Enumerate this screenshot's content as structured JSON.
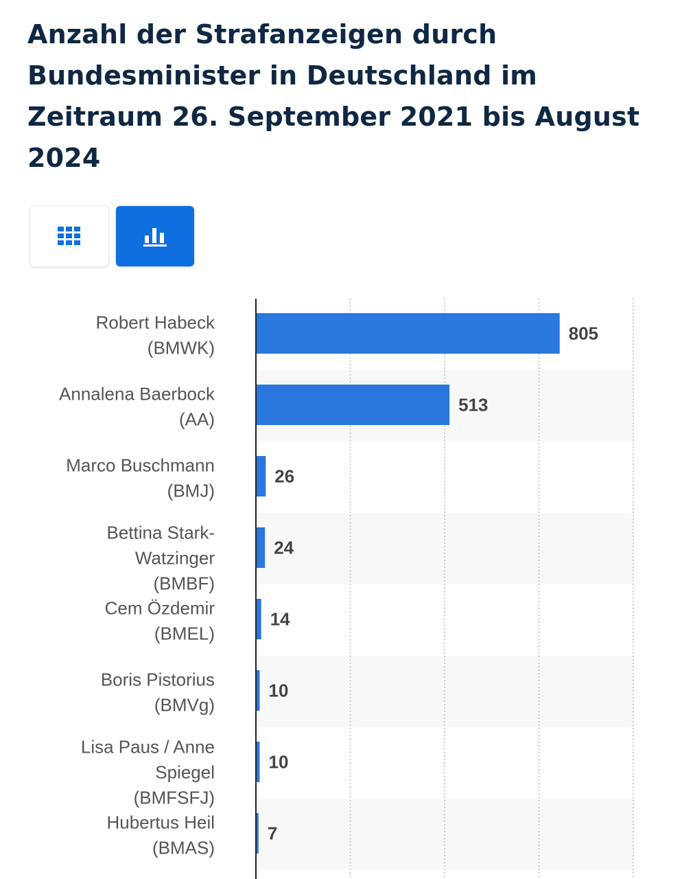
{
  "title": "Anzahl der Strafanzeigen durch Bundesminister in Deutschland im Zeitraum 26. September 2021 bis August 2024",
  "view_toggle": {
    "table_icon": "table-grid-icon",
    "chart_icon": "bar-chart-icon",
    "active": "chart"
  },
  "colors": {
    "title": "#0f2843",
    "bar": "#2a77de",
    "active_toggle": "#0f6fe0"
  },
  "chart_data": {
    "type": "bar",
    "orientation": "horizontal",
    "categories": [
      [
        "Robert Habeck",
        "(BMWK)"
      ],
      [
        "Annalena Baerbock",
        "(AA)"
      ],
      [
        "Marco Buschmann",
        "(BMJ)"
      ],
      [
        "Bettina Stark-",
        "Watzinger",
        "(BMBF)"
      ],
      [
        "Cem Özdemir",
        "(BMEL)"
      ],
      [
        "Boris Pistorius",
        "(BMVg)"
      ],
      [
        "Lisa Paus / Anne",
        "Spiegel",
        "(BMFSFJ)"
      ],
      [
        "Hubertus Heil",
        "(BMAS)"
      ]
    ],
    "values": [
      805,
      513,
      26,
      24,
      14,
      10,
      10,
      7
    ],
    "xlim": [
      0,
      1000
    ],
    "grid": true,
    "legend": "none"
  }
}
